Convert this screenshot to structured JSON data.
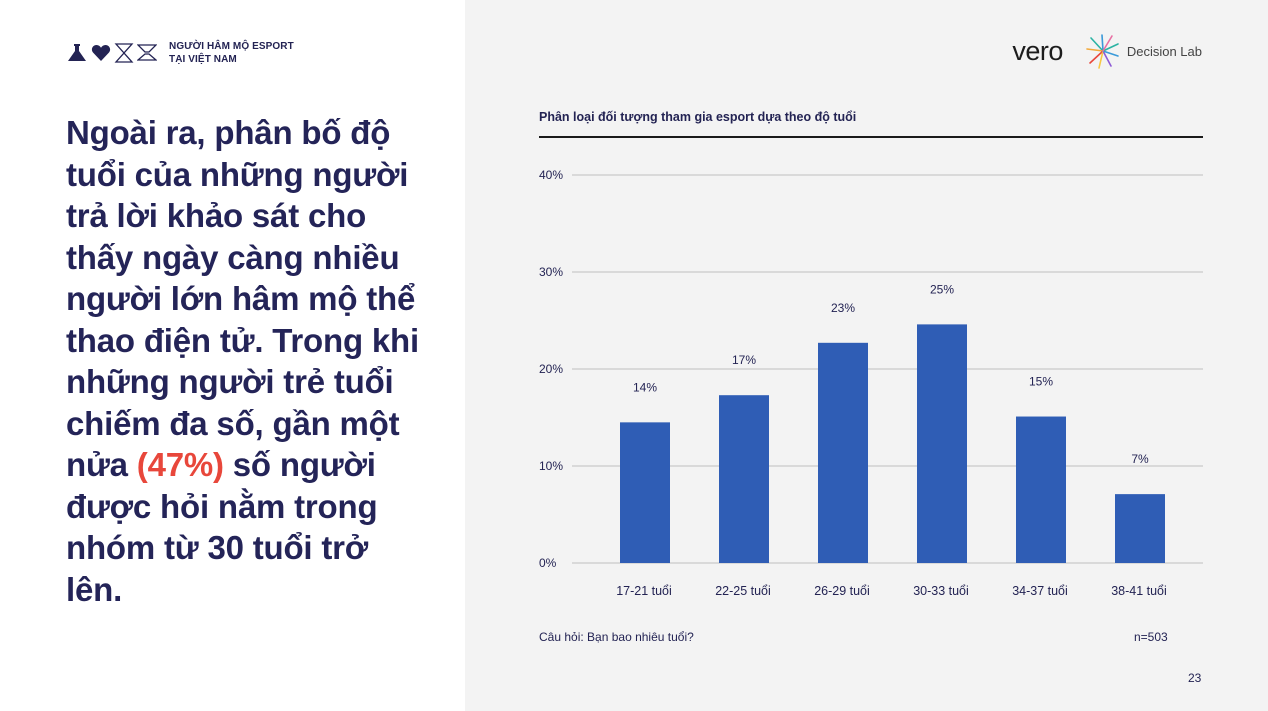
{
  "brand": {
    "line1": "NGƯỜI HÂM MỘ ESPORT",
    "line2": "TẠI VIỆT NAM"
  },
  "headline": {
    "part1": "Ngoài ra, phân bố độ tuổi của những người trả lời khảo sát cho thấy ngày càng nhiều người lớn hâm mộ thể thao điện tử. Trong khi những người trẻ tuổi chiếm đa số, gần một nửa ",
    "highlight": "(47%)",
    "part2": " số người được hỏi nằm trong nhóm từ 30 tuổi trở lên."
  },
  "logos": {
    "vero": "vero",
    "decision_lab": "Decision Lab"
  },
  "chart_data": {
    "type": "bar",
    "title": "Phân loại đối tượng tham gia esport dựa theo độ tuổi",
    "categories": [
      "17-21 tuổi",
      "22-25 tuổi",
      "26-29 tuổi",
      "30-33 tuổi",
      "34-37 tuổi",
      "38-41 tuổi"
    ],
    "values": [
      14.5,
      17.3,
      22.7,
      24.6,
      15.1,
      7.1
    ],
    "data_labels": [
      "14%",
      "17%",
      "23%",
      "25%",
      "15%",
      "7%"
    ],
    "ylim": [
      0,
      40
    ],
    "yticks": [
      0,
      10,
      20,
      30,
      40
    ],
    "ytick_labels": [
      "0%",
      "10%",
      "20%",
      "30%",
      "40%"
    ],
    "xlabel": "",
    "ylabel": "",
    "grid": true,
    "bar_color": "#2f5db5"
  },
  "footer": {
    "question": "Câu hỏi: Bạn bao nhiêu tuổi?",
    "n": "n=503",
    "page": "23"
  }
}
